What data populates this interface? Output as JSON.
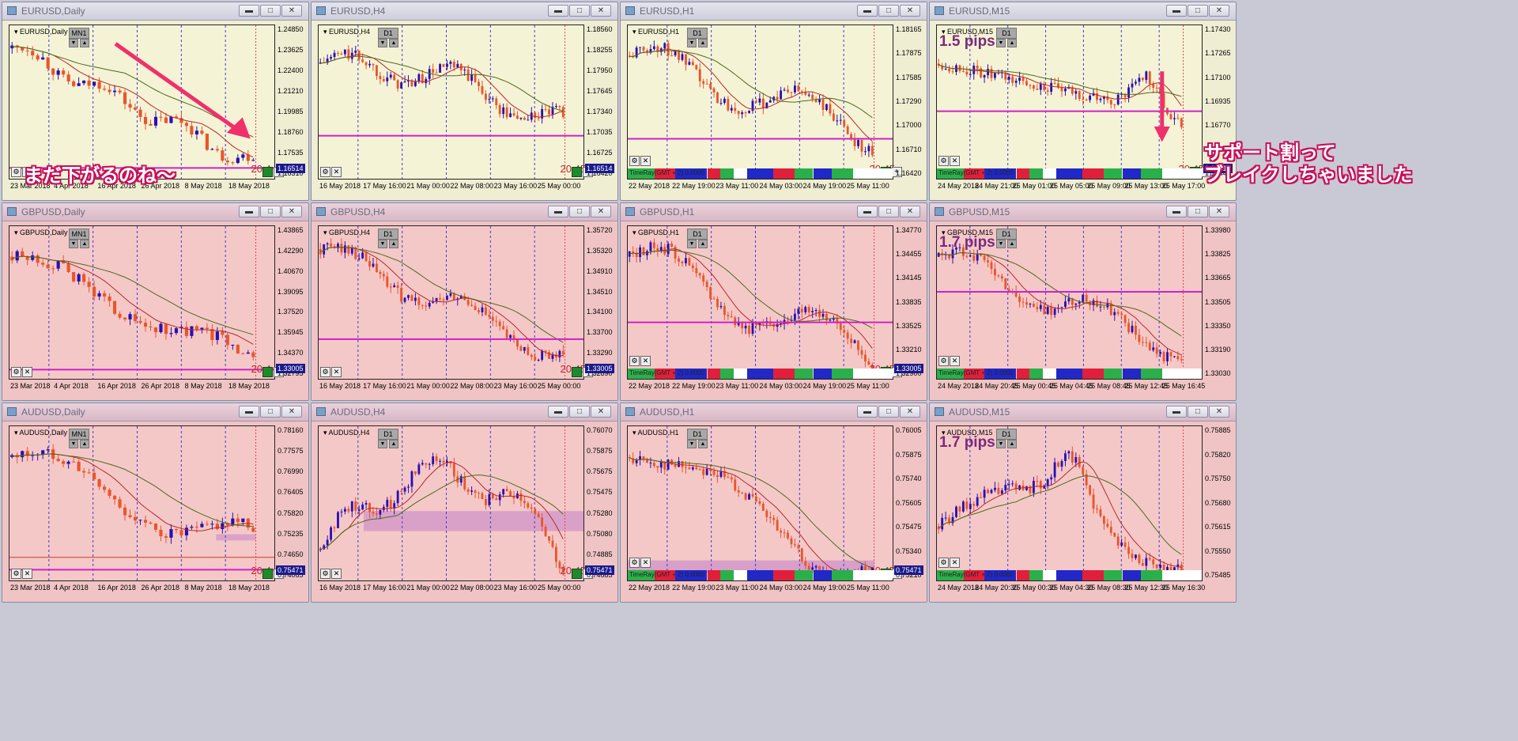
{
  "colors": {
    "yellow_bg": "#f5f3d6",
    "pink_bg": "#f5c8c8",
    "bull": "#2a10b0",
    "bear": "#e8562a",
    "ma_fast": "#b82828",
    "ma_slow": "#4c6b1a",
    "level": "#d020c8",
    "dash": "#3b3bd0",
    "now": "#e0464a",
    "zone": "#d59ac8"
  },
  "window_buttons": {
    "minimize": "▬",
    "maximize": "□",
    "close": "✕"
  },
  "chart_buttons": {
    "prev": "▼",
    "next": "▲",
    "plus": "+"
  },
  "annotations": {
    "eurusd_daily": "まだ下がるのね～",
    "eurusd_m15_line1": "サポート割って",
    "eurusd_m15_line2": "ブレイクしちゃいました"
  },
  "charts": [
    {
      "title": "EURUSD,Daily",
      "symbol": "EURUSD,Daily",
      "tf_button": "MN1",
      "bg": "yellow",
      "chart_data": {
        "type": "candlestick",
        "title": "EURUSD,Daily",
        "y_ticks": [
          "1.24850",
          "1.23625",
          "1.22400",
          "1.21210",
          "1.19985",
          "1.18760",
          "1.17535",
          "1.16310"
        ],
        "last_price": "1.16514",
        "x_ticks": [
          "23 Mar 2018",
          "4 Apr 2018",
          "16 Apr 2018",
          "26 Apr 2018",
          "8 May 2018",
          "18 May 2018"
        ],
        "time_label": "20:4",
        "trend": "down",
        "level": 0.93,
        "has_arrow": true
      }
    },
    {
      "title": "EURUSD,H4",
      "symbol": "EURUSD,H4",
      "tf_button": "D1",
      "bg": "yellow",
      "chart_data": {
        "type": "candlestick",
        "title": "EURUSD,H4",
        "y_ticks": [
          "1.18560",
          "1.18255",
          "1.17950",
          "1.17645",
          "1.17340",
          "1.17035",
          "1.16725",
          "1.16420"
        ],
        "last_price": "1.16514",
        "x_ticks": [
          "16 May 2018",
          "17 May 16:00",
          "21 May 00:00",
          "22 May 08:00",
          "23 May 16:00",
          "25 May 00:00"
        ],
        "time_label": "20:45",
        "trend": "down2",
        "level": 0.72
      }
    },
    {
      "title": "EURUSD,H1",
      "symbol": "EURUSD,H1",
      "tf_button": "D1",
      "bg": "yellow",
      "chart_data": {
        "type": "candlestick",
        "title": "EURUSD,H1",
        "y_ticks": [
          "1.18165",
          "1.17875",
          "1.17585",
          "1.17290",
          "1.17000",
          "1.16710",
          "1.16420"
        ],
        "last_price": "",
        "x_ticks": [
          "22 May 2018",
          "22 May 19:00",
          "23 May 11:00",
          "24 May 03:00",
          "24 May 19:00",
          "25 May 11:00"
        ],
        "time_label": "20:45",
        "trend": "down3",
        "level": 0.74,
        "timeray": true
      }
    },
    {
      "title": "EURUSD,M15",
      "symbol": "EURUSD,M15",
      "tf_button": "D1",
      "bg": "yellow",
      "chart_data": {
        "type": "candlestick",
        "title": "EURUSD,M15",
        "y_ticks": [
          "1.17430",
          "1.17265",
          "1.17100",
          "1.16935",
          "1.16770",
          "1.16605",
          "1.16440"
        ],
        "last_price": "1.16514",
        "x_ticks": [
          "24 May 2018",
          "24 May 21:00",
          "25 May 01:00",
          "25 May 05:00",
          "25 May 09:00",
          "25 May 13:00",
          "25 May 17:00"
        ],
        "time_label": "20:45",
        "pips": "1.5 pips",
        "trend": "m15eur",
        "level": 0.56,
        "timeray": true,
        "has_down_arrow": true
      }
    },
    {
      "title": "GBPUSD,Daily",
      "symbol": "GBPUSD,Daily",
      "tf_button": "MN1",
      "bg": "pink",
      "chart_data": {
        "type": "candlestick",
        "title": "GBPUSD,Daily",
        "y_ticks": [
          "1.43865",
          "1.42290",
          "1.40670",
          "1.39095",
          "1.37520",
          "1.35945",
          "1.34370",
          "1.32795"
        ],
        "last_price": "1.33005",
        "x_ticks": [
          "23 Mar 2018",
          "4 Apr 2018",
          "16 Apr 2018",
          "26 Apr 2018",
          "8 May 2018",
          "18 May 2018"
        ],
        "time_label": "20:4",
        "trend": "gbpd",
        "level": 0.94
      }
    },
    {
      "title": "GBPUSD,H4",
      "symbol": "GBPUSD,H4",
      "tf_button": "D1",
      "bg": "pink",
      "chart_data": {
        "type": "candlestick",
        "title": "GBPUSD,H4",
        "y_ticks": [
          "1.35720",
          "1.35320",
          "1.34910",
          "1.34510",
          "1.34100",
          "1.33700",
          "1.33290",
          "1.32890"
        ],
        "last_price": "1.33005",
        "x_ticks": [
          "16 May 2018",
          "17 May 16:00",
          "21 May 00:00",
          "22 May 08:00",
          "23 May 16:00",
          "25 May 00:00"
        ],
        "time_label": "20:45",
        "trend": "gbph4",
        "level": 0.74
      }
    },
    {
      "title": "GBPUSD,H1",
      "symbol": "GBPUSD,H1",
      "tf_button": "D1",
      "bg": "pink",
      "chart_data": {
        "type": "candlestick",
        "title": "GBPUSD,H1",
        "y_ticks": [
          "1.34770",
          "1.34455",
          "1.34145",
          "1.33835",
          "1.33525",
          "1.33210",
          "1.32900"
        ],
        "last_price": "1.33005",
        "x_ticks": [
          "22 May 2018",
          "22 May 19:00",
          "23 May 11:00",
          "24 May 03:00",
          "24 May 19:00",
          "25 May 11:00"
        ],
        "time_label": "20:45",
        "trend": "gbph1",
        "level": 0.63,
        "timeray": true
      }
    },
    {
      "title": "GBPUSD,M15",
      "symbol": "GBPUSD,M15",
      "tf_button": "D1",
      "bg": "pink",
      "chart_data": {
        "type": "candlestick",
        "title": "GBPUSD,M15",
        "y_ticks": [
          "1.33980",
          "1.33825",
          "1.33665",
          "1.33505",
          "1.33350",
          "1.33190",
          "1.33030"
        ],
        "last_price": "",
        "x_ticks": [
          "24 May 2018",
          "24 May 20:45",
          "25 May 00:45",
          "25 May 04:45",
          "25 May 08:45",
          "25 May 12:45",
          "25 May 16:45"
        ],
        "time_label": "",
        "pips": "1.7 pips",
        "trend": "gbpm15",
        "level": 0.43,
        "timeray": true
      }
    },
    {
      "title": "AUDUSD,Daily",
      "symbol": "AUDUSD,Daily",
      "tf_button": "MN1",
      "bg": "pink",
      "chart_data": {
        "type": "candlestick",
        "title": "AUDUSD,Daily",
        "y_ticks": [
          "0.78160",
          "0.77575",
          "0.76990",
          "0.76405",
          "0.75820",
          "0.75235",
          "0.74650",
          "0.74065"
        ],
        "last_price": "0.75471",
        "x_ticks": [
          "23 Mar 2018",
          "4 Apr 2018",
          "16 Apr 2018",
          "26 Apr 2018",
          "8 May 2018",
          "18 May 2018"
        ],
        "time_label": "20:4",
        "trend": "audd",
        "level": 0.93,
        "zone": true
      }
    },
    {
      "title": "AUDUSD,H4",
      "symbol": "AUDUSD,H4",
      "tf_button": "D1",
      "bg": "pink",
      "chart_data": {
        "type": "candlestick",
        "title": "AUDUSD,H4",
        "y_ticks": [
          "0.76070",
          "0.75875",
          "0.75675",
          "0.75475",
          "0.75280",
          "0.75080",
          "0.74885",
          "0.74685"
        ],
        "last_price": "0.75471",
        "x_ticks": [
          "16 May 2018",
          "17 May 16:00",
          "21 May 00:00",
          "22 May 08:00",
          "23 May 16:00",
          "25 May 00:00"
        ],
        "time_label": "20:45",
        "trend": "audh4",
        "level": null,
        "zone": true
      }
    },
    {
      "title": "AUDUSD,H1",
      "symbol": "AUDUSD,H1",
      "tf_button": "D1",
      "bg": "pink",
      "chart_data": {
        "type": "candlestick",
        "title": "AUDUSD,H1",
        "y_ticks": [
          "0.76005",
          "0.75875",
          "0.75740",
          "0.75605",
          "0.75475",
          "0.75340",
          "0.75210"
        ],
        "last_price": "0.75471",
        "x_ticks": [
          "22 May 2018",
          "22 May 19:00",
          "23 May 11:00",
          "24 May 03:00",
          "24 May 19:00",
          "25 May 11:00"
        ],
        "time_label": "20:45",
        "trend": "audh1",
        "level": null,
        "zone": true,
        "timeray": true
      }
    },
    {
      "title": "AUDUSD,M15",
      "symbol": "AUDUSD,M15",
      "tf_button": "D1",
      "bg": "pink",
      "chart_data": {
        "type": "candlestick",
        "title": "AUDUSD,M15",
        "y_ticks": [
          "0.75885",
          "0.75820",
          "0.75750",
          "0.75680",
          "0.75615",
          "0.75550",
          "0.75485"
        ],
        "last_price": "",
        "x_ticks": [
          "24 May 2018",
          "24 May 20:30",
          "25 May 00:30",
          "25 May 04:30",
          "25 May 08:30",
          "25 May 12:30",
          "25 May 16:30"
        ],
        "time_label": "",
        "pips": "1.7 pips",
        "trend": "audm15",
        "level": null,
        "timeray": true
      }
    }
  ],
  "timeray_label": "TimeRay(GMT + 2) 0.0000"
}
